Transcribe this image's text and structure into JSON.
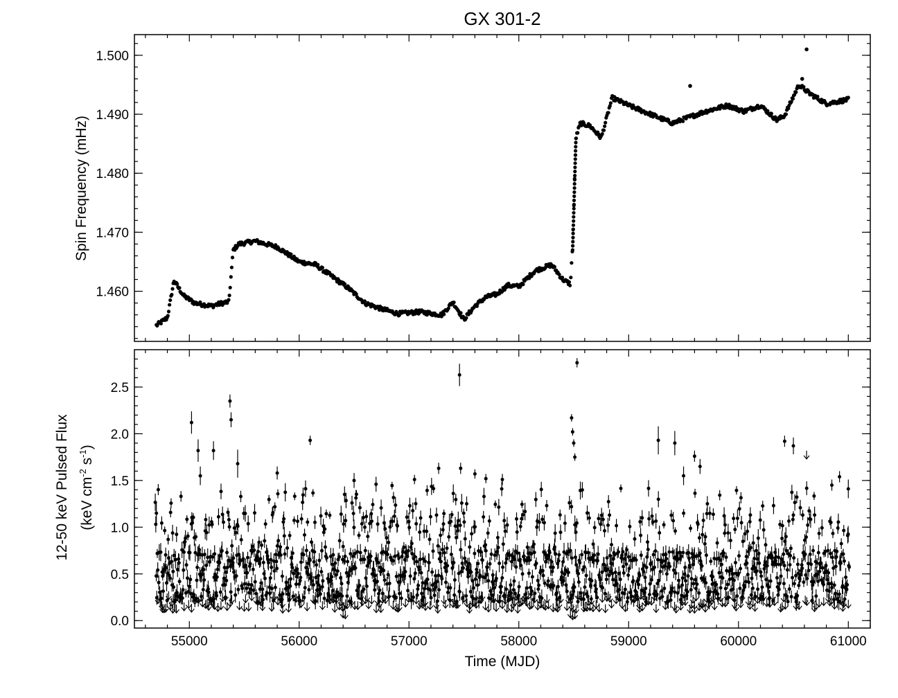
{
  "chart_data": [
    {
      "type": "scatter",
      "title": "GX 301-2",
      "xlabel": "",
      "ylabel": "Spin Frequency (mHz)",
      "xlim": [
        54500,
        61200
      ],
      "ylim": [
        1.4515,
        1.5035
      ],
      "xticks": [
        55000,
        56000,
        57000,
        58000,
        59000,
        60000,
        61000
      ],
      "yticks": [
        1.46,
        1.47,
        1.48,
        1.49,
        1.5
      ],
      "ytick_labels": [
        "1.460",
        "1.470",
        "1.480",
        "1.490",
        "1.500"
      ],
      "grid": false,
      "series": [
        {
          "x": [
            54700,
            54800,
            54860,
            54950,
            55050,
            55200,
            55300,
            55360,
            55400,
            55450,
            55600,
            55800,
            56000,
            56150,
            56300,
            56450,
            56600,
            56750,
            56900,
            57100,
            57300,
            57400,
            57500,
            57600,
            57700,
            57800,
            57900,
            58000,
            58150,
            58300,
            58400,
            58470,
            58490,
            58520,
            58560,
            58650,
            58750,
            58850,
            59000,
            59200,
            59400,
            59550,
            59700,
            59900,
            60050,
            60200,
            60350,
            60420,
            60550,
            60650,
            60800,
            61000
          ],
          "y": [
            1.4542,
            1.4555,
            1.4618,
            1.4592,
            1.458,
            1.4575,
            1.458,
            1.4582,
            1.467,
            1.468,
            1.4685,
            1.4675,
            1.465,
            1.4645,
            1.4625,
            1.4605,
            1.458,
            1.457,
            1.4562,
            1.4565,
            1.456,
            1.4582,
            1.4552,
            1.4575,
            1.459,
            1.4595,
            1.461,
            1.4608,
            1.4635,
            1.4645,
            1.462,
            1.4612,
            1.468,
            1.486,
            1.4885,
            1.488,
            1.486,
            1.4928,
            1.4915,
            1.49,
            1.4885,
            1.4895,
            1.4905,
            1.4915,
            1.4905,
            1.4915,
            1.489,
            1.4898,
            1.495,
            1.4935,
            1.4918,
            1.4925
          ]
        }
      ]
    },
    {
      "type": "scatter",
      "title": "",
      "xlabel": "Time (MJD)",
      "ylabel": "12-50 keV Pulsed Flux",
      "ylabel_line2": "(keV cm",
      "ylabel_exp1": "-2",
      "ylabel_mid": " s",
      "ylabel_exp2": "-1",
      "ylabel_end": ")",
      "xlim": [
        54500,
        61200
      ],
      "ylim": [
        -0.08,
        2.9
      ],
      "xticks": [
        55000,
        56000,
        57000,
        58000,
        59000,
        60000,
        61000
      ],
      "yticks": [
        0.0,
        0.5,
        1.0,
        1.5,
        2.0,
        2.5
      ],
      "ytick_labels": [
        "0.0",
        "0.5",
        "1.0",
        "1.5",
        "2.0",
        "2.5"
      ],
      "grid": false,
      "series": [
        {
          "x": [
            54700,
            55020,
            55080,
            55100,
            55220,
            55370,
            55380,
            55440,
            55800,
            56100,
            56500,
            56700,
            57050,
            57270,
            57460,
            57470,
            57600,
            57700,
            57850,
            58480,
            58490,
            58500,
            58510,
            58530,
            59270,
            59420,
            59500,
            59600,
            59650,
            60420,
            60500,
            60850,
            60920,
            61000
          ],
          "y": [
            1.15,
            2.12,
            1.82,
            1.55,
            1.82,
            2.35,
            2.15,
            1.68,
            1.58,
            1.93,
            1.5,
            1.46,
            1.51,
            1.63,
            2.63,
            1.63,
            1.57,
            1.52,
            1.51,
            2.17,
            2.02,
            1.9,
            1.75,
            2.76,
            1.93,
            1.9,
            1.55,
            1.76,
            1.65,
            1.92,
            1.87,
            1.45,
            1.54,
            1.41
          ],
          "err": [
            0.12,
            0.12,
            0.12,
            0.1,
            0.1,
            0.07,
            0.08,
            0.15,
            0.07,
            0.05,
            0.08,
            0.08,
            0.05,
            0.06,
            0.12,
            0.06,
            0.05,
            0.05,
            0.06,
            0.04,
            0.04,
            0.04,
            0.04,
            0.05,
            0.15,
            0.13,
            0.1,
            0.06,
            0.08,
            0.06,
            0.09,
            0.06,
            0.06,
            0.1
          ]
        }
      ],
      "upper_limits": {
        "x": [
          54750,
          54850,
          55020,
          55230,
          55500,
          55850,
          56400,
          56420,
          56900,
          57150,
          57550,
          58100,
          58470,
          58490,
          58510,
          58620,
          59100,
          59600,
          60150,
          60620,
          60950
        ],
        "y": [
          0.12,
          0.08,
          0.09,
          0.12,
          0.1,
          0.08,
          0.03,
          0.02,
          0.09,
          0.11,
          0.08,
          0.12,
          0.03,
          0.01,
          0.02,
          0.1,
          0.09,
          0.08,
          0.1,
          1.73,
          0.1
        ]
      }
    }
  ]
}
